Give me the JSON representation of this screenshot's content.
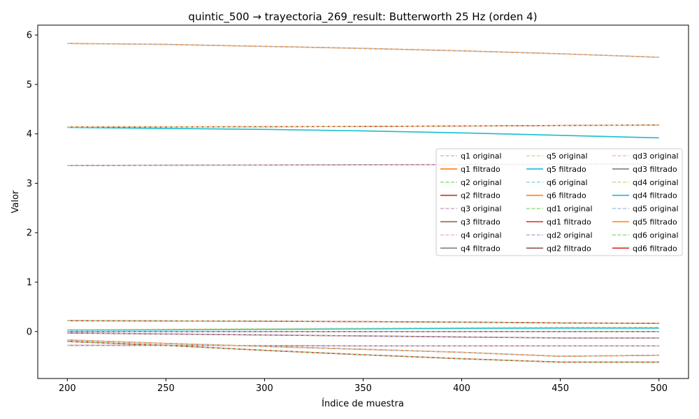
{
  "chart_data": {
    "type": "line",
    "title": "quintic_500 → trayectoria_269_result: Butterworth 25 Hz (orden 4)",
    "xlabel": "Índice de muestra",
    "ylabel": "Valor",
    "xlim": [
      185,
      515
    ],
    "ylim": [
      -0.95,
      6.2
    ],
    "xticks": [
      200,
      250,
      300,
      350,
      400,
      450,
      500
    ],
    "yticks": [
      0,
      1,
      2,
      3,
      4,
      5,
      6
    ],
    "legend_placement": "center-right",
    "legend_columns": 3,
    "grid": false,
    "x": [
      200,
      250,
      300,
      350,
      400,
      450,
      500
    ],
    "series": [
      {
        "name": "q1 original",
        "color": "#aec7e8",
        "dashed": true,
        "values": [
          5.83,
          5.81,
          5.77,
          5.73,
          5.68,
          5.62,
          5.55
        ]
      },
      {
        "name": "q1 filtrado",
        "color": "#ff7f0e",
        "dashed": false,
        "values": [
          5.83,
          5.81,
          5.77,
          5.73,
          5.68,
          5.62,
          5.55
        ]
      },
      {
        "name": "q2 original",
        "color": "#98df8a",
        "dashed": true,
        "values": [
          4.14,
          4.14,
          4.145,
          4.15,
          4.16,
          4.17,
          4.18
        ]
      },
      {
        "name": "q2 filtrado",
        "color": "#d62728",
        "dashed": false,
        "values": [
          4.14,
          4.14,
          4.145,
          4.15,
          4.16,
          4.17,
          4.18
        ]
      },
      {
        "name": "q3 original",
        "color": "#c5b0d5",
        "dashed": true,
        "values": [
          -0.03,
          -0.05,
          -0.07,
          -0.09,
          -0.11,
          -0.13,
          -0.13
        ]
      },
      {
        "name": "q3 filtrado",
        "color": "#8c564b",
        "dashed": false,
        "values": [
          -0.03,
          -0.05,
          -0.07,
          -0.09,
          -0.11,
          -0.13,
          -0.13
        ]
      },
      {
        "name": "q4 original",
        "color": "#f7b6d2",
        "dashed": true,
        "values": [
          3.36,
          3.365,
          3.37,
          3.375,
          3.38,
          3.385,
          3.39
        ]
      },
      {
        "name": "q4 filtrado",
        "color": "#7f7f7f",
        "dashed": false,
        "values": [
          3.36,
          3.365,
          3.37,
          3.375,
          3.38,
          3.385,
          3.39
        ]
      },
      {
        "name": "q5 original",
        "color": "#dbdb8d",
        "dashed": true,
        "values": [
          4.14,
          4.14,
          4.145,
          4.15,
          4.16,
          4.17,
          4.18
        ]
      },
      {
        "name": "q5 filtrado",
        "color": "#17becf",
        "dashed": false,
        "values": [
          4.13,
          4.11,
          4.09,
          4.06,
          4.02,
          3.97,
          3.92
        ]
      },
      {
        "name": "q6 original",
        "color": "#9edae5",
        "dashed": true,
        "values": [
          -0.17,
          -0.24,
          -0.3,
          -0.36,
          -0.42,
          -0.5,
          -0.48
        ]
      },
      {
        "name": "q6 filtrado",
        "color": "#ff7f0e",
        "dashed": false,
        "values": [
          -0.17,
          -0.24,
          -0.3,
          -0.36,
          -0.42,
          -0.5,
          -0.48
        ]
      },
      {
        "name": "qd1 original",
        "color": "#98df8a",
        "dashed": true,
        "values": [
          0.22,
          0.215,
          0.21,
          0.2,
          0.19,
          0.175,
          0.165
        ]
      },
      {
        "name": "qd1 filtrado",
        "color": "#d62728",
        "dashed": false,
        "values": [
          0.22,
          0.215,
          0.21,
          0.2,
          0.19,
          0.175,
          0.165
        ]
      },
      {
        "name": "qd2 original",
        "color": "#c5b0d5",
        "dashed": true,
        "values": [
          0.0,
          0.0,
          0.0,
          0.0,
          0.0,
          0.0,
          0.0
        ]
      },
      {
        "name": "qd2 filtrado",
        "color": "#8c564b",
        "dashed": false,
        "values": [
          0.0,
          0.0,
          0.0,
          0.0,
          0.0,
          0.0,
          0.0
        ]
      },
      {
        "name": "qd3 original",
        "color": "#f7b6d2",
        "dashed": true,
        "values": [
          -0.28,
          -0.28,
          -0.285,
          -0.29,
          -0.29,
          -0.29,
          -0.29
        ]
      },
      {
        "name": "qd3 filtrado",
        "color": "#7f7f7f",
        "dashed": false,
        "values": [
          -0.28,
          -0.28,
          -0.285,
          -0.29,
          -0.29,
          -0.29,
          -0.29
        ]
      },
      {
        "name": "qd4 original",
        "color": "#dbdb8d",
        "dashed": true,
        "values": [
          0.04,
          0.05,
          0.06,
          0.07,
          0.08,
          0.09,
          0.09
        ]
      },
      {
        "name": "qd4 filtrado",
        "color": "#17becf",
        "dashed": false,
        "values": [
          0.03,
          0.035,
          0.045,
          0.055,
          0.065,
          0.07,
          0.07
        ]
      },
      {
        "name": "qd5 original",
        "color": "#aec7e8",
        "dashed": true,
        "values": [
          -0.17,
          -0.24,
          -0.3,
          -0.36,
          -0.42,
          -0.5,
          -0.48
        ]
      },
      {
        "name": "qd5 filtrado",
        "color": "#ff7f0e",
        "dashed": false,
        "values": [
          -0.17,
          -0.24,
          -0.3,
          -0.36,
          -0.42,
          -0.5,
          -0.48
        ]
      },
      {
        "name": "qd6 original",
        "color": "#98df8a",
        "dashed": true,
        "values": [
          -0.2,
          -0.28,
          -0.38,
          -0.47,
          -0.55,
          -0.62,
          -0.62
        ]
      },
      {
        "name": "qd6 filtrado",
        "color": "#d62728",
        "dashed": false,
        "values": [
          -0.2,
          -0.28,
          -0.38,
          -0.47,
          -0.55,
          -0.62,
          -0.62
        ]
      }
    ]
  }
}
